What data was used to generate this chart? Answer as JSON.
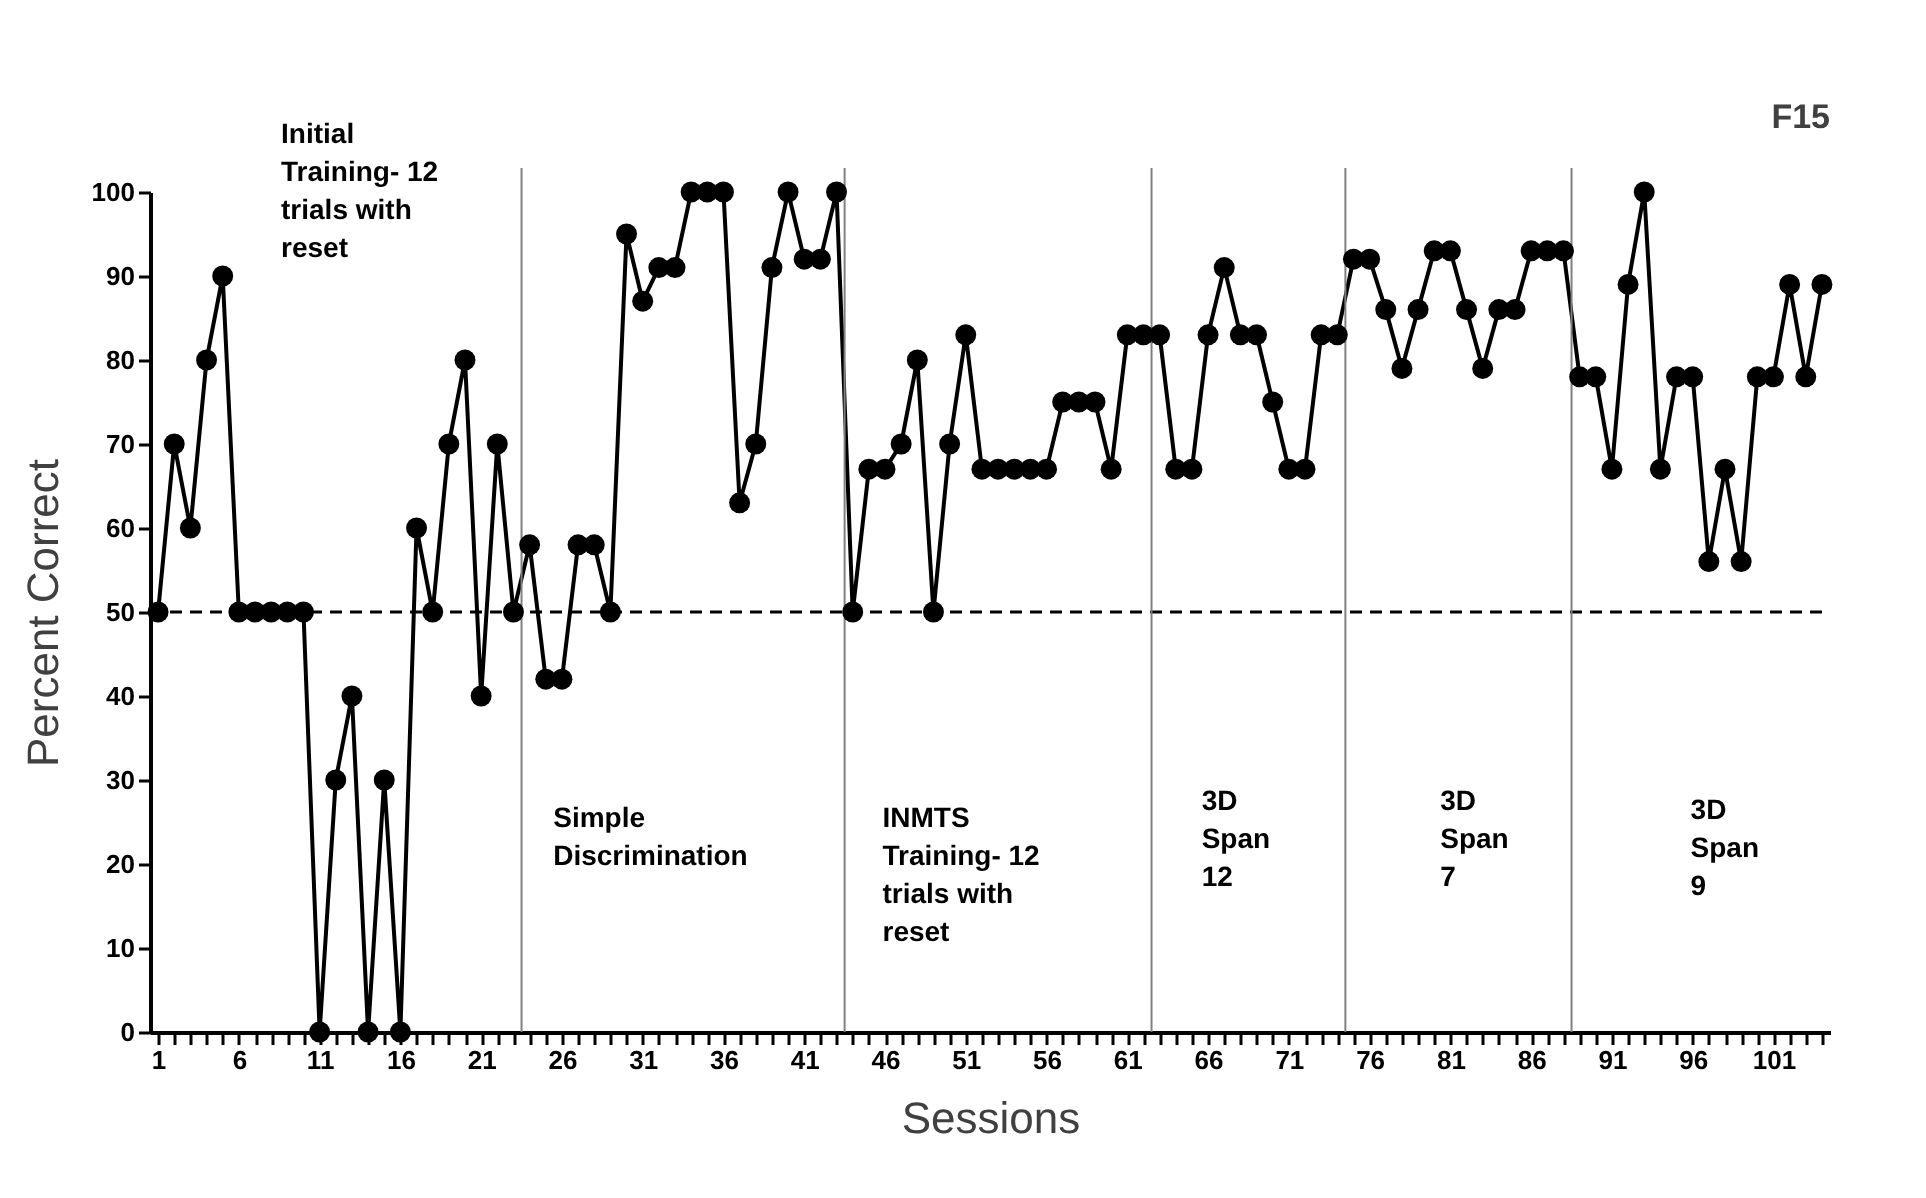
{
  "chart_data": {
    "type": "line",
    "xlabel": "Sessions",
    "ylabel": "Percent Correct",
    "x": [
      1,
      2,
      3,
      4,
      5,
      6,
      7,
      8,
      9,
      10,
      11,
      12,
      13,
      14,
      15,
      16,
      17,
      18,
      19,
      20,
      21,
      22,
      23,
      24,
      25,
      26,
      27,
      28,
      29,
      30,
      31,
      32,
      33,
      34,
      35,
      36,
      37,
      38,
      39,
      40,
      41,
      42,
      43,
      44,
      45,
      46,
      47,
      48,
      49,
      50,
      51,
      52,
      53,
      54,
      55,
      56,
      57,
      58,
      59,
      60,
      61,
      62,
      63,
      64,
      65,
      66,
      67,
      68,
      69,
      70,
      71,
      72,
      73,
      74,
      75,
      76,
      77,
      78,
      79,
      80,
      81,
      82,
      83,
      84,
      85,
      86,
      87,
      88,
      89,
      90,
      91,
      92,
      93,
      94,
      95,
      96,
      97,
      98,
      99,
      100,
      101,
      102,
      103,
      104
    ],
    "series": [
      {
        "color": "#000000",
        "values": [
          50,
          70,
          60,
          80,
          90,
          50,
          50,
          50,
          50,
          50,
          0,
          30,
          40,
          0,
          30,
          0,
          60,
          50,
          70,
          80,
          40,
          70,
          50,
          58,
          42,
          42,
          58,
          58,
          50,
          95,
          87,
          91,
          91,
          100,
          100,
          100,
          63,
          70,
          91,
          100,
          92,
          92,
          100,
          50,
          67,
          67,
          70,
          80,
          50,
          70,
          83,
          67,
          67,
          67,
          67,
          67,
          75,
          75,
          75,
          67,
          83,
          83,
          83,
          67,
          67,
          83,
          91,
          83,
          83,
          75,
          67,
          67,
          83,
          83,
          92,
          92,
          86,
          79,
          86,
          93,
          93,
          86,
          79,
          86,
          86,
          93,
          93,
          93,
          78,
          78,
          67,
          89,
          100,
          67,
          78,
          78,
          56,
          67,
          56,
          78,
          78,
          89,
          78,
          89
        ]
      }
    ],
    "xlim": [
      0.5,
      104.5
    ],
    "xticks": [
      1,
      {
        "value": 2,
        "label": null
      },
      {
        "value": 3,
        "label": null
      },
      {
        "value": 4,
        "label": null
      },
      {
        "value": 5,
        "label": null
      },
      6,
      {
        "value": 7,
        "label": null
      },
      {
        "value": 8,
        "label": null
      },
      {
        "value": 9,
        "label": null
      },
      {
        "value": 10,
        "label": null
      },
      11,
      {
        "value": 12,
        "label": null
      },
      {
        "value": 13,
        "label": null
      },
      {
        "value": 14,
        "label": null
      },
      {
        "value": 15,
        "label": null
      },
      16,
      {
        "value": 17,
        "label": null
      },
      {
        "value": 18,
        "label": null
      },
      {
        "value": 19,
        "label": null
      },
      {
        "value": 20,
        "label": null
      },
      21,
      {
        "value": 22,
        "label": null
      },
      {
        "value": 23,
        "label": null
      },
      {
        "value": 24,
        "label": null
      },
      {
        "value": 25,
        "label": null
      },
      26,
      {
        "value": 27,
        "label": null
      },
      {
        "value": 28,
        "label": null
      },
      {
        "value": 29,
        "label": null
      },
      {
        "value": 30,
        "label": null
      },
      31,
      {
        "value": 32,
        "label": null
      },
      {
        "value": 33,
        "label": null
      },
      {
        "value": 34,
        "label": null
      },
      {
        "value": 35,
        "label": null
      },
      36,
      {
        "value": 37,
        "label": null
      },
      {
        "value": 38,
        "label": null
      },
      {
        "value": 39,
        "label": null
      },
      {
        "value": 40,
        "label": null
      },
      41,
      {
        "value": 42,
        "label": null
      },
      {
        "value": 43,
        "label": null
      },
      {
        "value": 44,
        "label": null
      },
      {
        "value": 45,
        "label": null
      },
      46,
      {
        "value": 47,
        "label": null
      },
      {
        "value": 48,
        "label": null
      },
      {
        "value": 49,
        "label": null
      },
      {
        "value": 50,
        "label": null
      },
      51,
      {
        "value": 52,
        "label": null
      },
      {
        "value": 53,
        "label": null
      },
      {
        "value": 54,
        "label": null
      },
      {
        "value": 55,
        "label": null
      },
      56,
      {
        "value": 57,
        "label": null
      },
      {
        "value": 58,
        "label": null
      },
      {
        "value": 59,
        "label": null
      },
      {
        "value": 60,
        "label": null
      },
      61,
      {
        "value": 62,
        "label": null
      },
      {
        "value": 63,
        "label": null
      },
      {
        "value": 64,
        "label": null
      },
      {
        "value": 65,
        "label": null
      },
      66,
      {
        "value": 67,
        "label": null
      },
      {
        "value": 68,
        "label": null
      },
      {
        "value": 69,
        "label": null
      },
      {
        "value": 70,
        "label": null
      },
      71,
      {
        "value": 72,
        "label": null
      },
      {
        "value": 73,
        "label": null
      },
      {
        "value": 74,
        "label": null
      },
      {
        "value": 75,
        "label": null
      },
      76,
      {
        "value": 77,
        "label": null
      },
      {
        "value": 78,
        "label": null
      },
      {
        "value": 79,
        "label": null
      },
      {
        "value": 80,
        "label": null
      },
      81,
      {
        "value": 82,
        "label": null
      },
      {
        "value": 83,
        "label": null
      },
      {
        "value": 84,
        "label": null
      },
      {
        "value": 85,
        "label": null
      },
      86,
      {
        "value": 87,
        "label": null
      },
      {
        "value": 88,
        "label": null
      },
      {
        "value": 89,
        "label": null
      },
      {
        "value": 90,
        "label": null
      },
      91,
      {
        "value": 92,
        "label": null
      },
      {
        "value": 93,
        "label": null
      },
      {
        "value": 94,
        "label": null
      },
      {
        "value": 95,
        "label": null
      },
      96,
      {
        "value": 97,
        "label": null
      },
      {
        "value": 98,
        "label": null
      },
      {
        "value": 99,
        "label": null
      },
      {
        "value": 100,
        "label": null
      },
      101,
      {
        "value": 102,
        "label": null
      },
      {
        "value": 103,
        "label": null
      },
      {
        "value": 104,
        "label": null
      }
    ],
    "ylim": [
      0,
      100
    ],
    "yticks": [
      0,
      10,
      20,
      30,
      40,
      50,
      60,
      70,
      80,
      90,
      100
    ],
    "grid": false,
    "marker": "circle",
    "line_style": "solid",
    "ref_lines": [
      {
        "axis": "y",
        "value": 50,
        "color": "#000000",
        "line_style": "dashed"
      },
      {
        "axis": "x",
        "value": 23.5,
        "color": "#808080",
        "line_style": "solid"
      },
      {
        "axis": "x",
        "value": 43.5,
        "color": "#808080",
        "line_style": "solid"
      },
      {
        "axis": "x",
        "value": 62.5,
        "color": "#808080",
        "line_style": "solid"
      },
      {
        "axis": "x",
        "value": 74.5,
        "color": "#808080",
        "line_style": "solid"
      },
      {
        "axis": "x",
        "value": 88.5,
        "color": "#808080",
        "line_style": "solid"
      }
    ],
    "annotations": [
      "Initial\nTraining- 12\ntrials with\nreset",
      "Simple\nDiscrimination",
      "INMTS\nTraining- 12\ntrials with\nreset",
      "3D\nSpan\n12",
      "3D\nSpan\n7",
      "3D\nSpan\n9",
      "F15"
    ]
  }
}
